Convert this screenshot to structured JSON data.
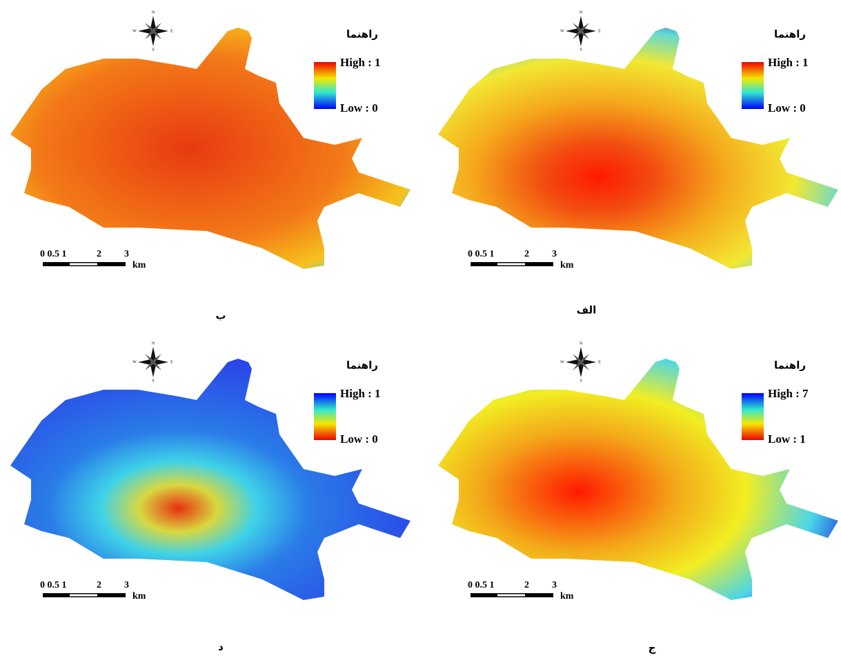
{
  "panels": [
    {
      "label": "ب",
      "legend_title": "راهنما",
      "high": "High : 1",
      "low": "Low : 0",
      "scale": [
        "0 0.5 1",
        "2",
        "3"
      ],
      "unit": "km",
      "compass": [
        "N",
        "E",
        "S",
        "W"
      ]
    },
    {
      "label": "الف",
      "legend_title": "راهنما",
      "high": "High : 1",
      "low": "Low : 0",
      "scale": [
        "0 0.5 1",
        "2",
        "3"
      ],
      "unit": "km",
      "compass": [
        "N",
        "E",
        "S",
        "W"
      ]
    },
    {
      "label": "د",
      "legend_title": "راهنما",
      "high": "High : 1",
      "low": "Low : 0",
      "scale": [
        "0 0.5 1",
        "2",
        "3"
      ],
      "unit": "km",
      "compass": [
        "N",
        "E",
        "S",
        "W"
      ]
    },
    {
      "label": "ج",
      "legend_title": "راهنما",
      "high": "High : 7",
      "low": "Low : 1",
      "scale": [
        "0 0.5 1",
        "2",
        "3"
      ],
      "unit": "km",
      "compass": [
        "N",
        "E",
        "S",
        "W"
      ]
    }
  ]
}
